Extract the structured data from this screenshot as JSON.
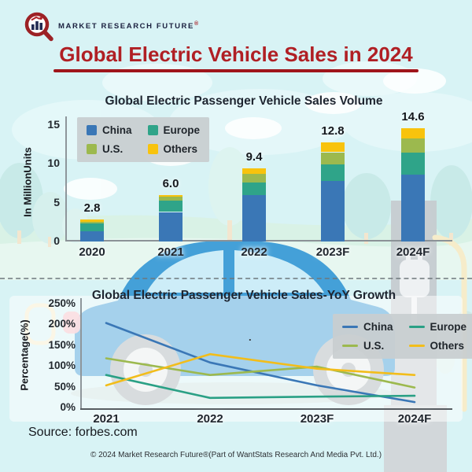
{
  "brand": {
    "name": "MARKET RESEARCH FUTURE",
    "registered_mark": "®"
  },
  "header": {
    "title": "Global Electric Vehicle Sales in 2024"
  },
  "colors": {
    "title_red": "#b01f24",
    "underline_red": "#9f151b",
    "legend_background": "#c8cdd0",
    "sky_background": "#d8f3f5"
  },
  "icons": {
    "logo": "magnifier-bar-chart",
    "charger": "ev-charging-station",
    "plug": "power-plug"
  },
  "chart_data": [
    {
      "type": "bar",
      "stacked": true,
      "title": "Global Electric Passenger Vehicle Sales Volume",
      "ylabel": "In MillionUnits",
      "categories": [
        "2020",
        "2021",
        "2022",
        "2023F",
        "2024F"
      ],
      "series": [
        {
          "name": "China",
          "color": "#3a77b6",
          "values": [
            1.35,
            3.8,
            6.0,
            7.8,
            8.6
          ]
        },
        {
          "name": "Europe",
          "color": "#2fa489",
          "values": [
            0.95,
            1.45,
            1.6,
            2.1,
            2.9
          ]
        },
        {
          "name": "U.S.",
          "color": "#9cb94e",
          "values": [
            0.2,
            0.5,
            1.1,
            1.6,
            1.8
          ]
        },
        {
          "name": "Others",
          "color": "#f8c30d",
          "values": [
            0.3,
            0.25,
            0.7,
            1.3,
            1.3
          ]
        }
      ],
      "totals": [
        2.8,
        6.0,
        9.4,
        12.8,
        14.6
      ],
      "total_labels": [
        "2.8",
        "6.0",
        "9.4",
        "12.8",
        "14.6"
      ],
      "yticks": [
        0,
        5,
        10,
        15
      ],
      "ytick_labels": [
        "0",
        "5",
        "10",
        "15"
      ],
      "ylim": [
        0,
        16.5
      ],
      "grid": false,
      "legend_position": "top-left"
    },
    {
      "type": "line",
      "title": "Global Electric Passenger Vehicle Sales-YoY Growth",
      "ylabel": "Percentage(%)",
      "categories": [
        "2021",
        "2022",
        "2023F",
        "2024F"
      ],
      "series": [
        {
          "name": "China",
          "color": "#3a77b6",
          "values": [
            205,
            110,
            55,
            15
          ]
        },
        {
          "name": "Europe",
          "color": "#2aa085",
          "values": [
            80,
            25,
            28,
            30
          ]
        },
        {
          "name": "U.S.",
          "color": "#9cb94e",
          "values": [
            120,
            80,
            100,
            50
          ]
        },
        {
          "name": "Others",
          "color": "#f2bd1b",
          "values": [
            55,
            130,
            95,
            80
          ]
        }
      ],
      "yticks": [
        0,
        50,
        100,
        150,
        200,
        250
      ],
      "ytick_labels": [
        "0%",
        "50%",
        "100%",
        "150%",
        "200%",
        "250%"
      ],
      "ylim": [
        0,
        260
      ],
      "grid": false,
      "legend_position": "top-right",
      "stray_annotation": "."
    }
  ],
  "footer": {
    "source": "Source: forbes.com",
    "copyright": "© 2024 Market Research Future®(Part of WantStats Research And Media Pvt. Ltd.)"
  }
}
